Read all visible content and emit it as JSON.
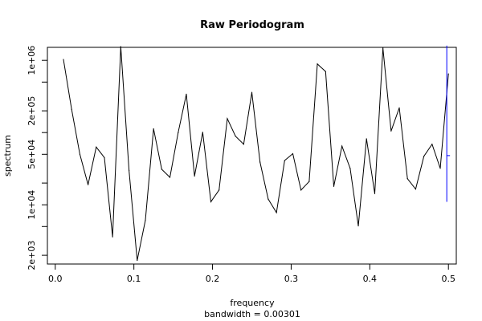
{
  "chart_data": {
    "type": "line",
    "title": "Raw Periodogram",
    "xlabel": "frequency",
    "xsublabel": "bandwidth = 0.00301",
    "ylabel": "spectrum",
    "y_scale": "log",
    "xlim": [
      -0.01,
      0.51
    ],
    "ylim_log10": [
      3.18,
      6.18
    ],
    "x_ticks": [
      {
        "value": 0.0,
        "label": "0.0"
      },
      {
        "value": 0.1,
        "label": "0.1"
      },
      {
        "value": 0.2,
        "label": "0.2"
      },
      {
        "value": 0.3,
        "label": "0.3"
      },
      {
        "value": 0.4,
        "label": "0.4"
      },
      {
        "value": 0.5,
        "label": "0.5"
      }
    ],
    "y_ticks": [
      {
        "value": 2000,
        "label": "2e+03"
      },
      {
        "value": 5000,
        "label": ""
      },
      {
        "value": 10000,
        "label": "1e+04"
      },
      {
        "value": 20000,
        "label": ""
      },
      {
        "value": 50000,
        "label": "5e+04"
      },
      {
        "value": 100000,
        "label": ""
      },
      {
        "value": 200000,
        "label": "2e+05"
      },
      {
        "value": 500000,
        "label": ""
      },
      {
        "value": 1000000,
        "label": "1e+06"
      }
    ],
    "series": [
      {
        "color": "#000000",
        "x": [
          0.0104,
          0.0208,
          0.0313,
          0.0417,
          0.0521,
          0.0625,
          0.0729,
          0.0833,
          0.0938,
          0.1042,
          0.1146,
          0.125,
          0.1354,
          0.1458,
          0.1563,
          0.1667,
          0.1771,
          0.1875,
          0.1979,
          0.2083,
          0.2188,
          0.2292,
          0.2396,
          0.25,
          0.2604,
          0.2708,
          0.2813,
          0.2917,
          0.3021,
          0.3125,
          0.3229,
          0.3333,
          0.3438,
          0.3542,
          0.3646,
          0.375,
          0.3854,
          0.3958,
          0.4063,
          0.4167,
          0.4271,
          0.4375,
          0.4479,
          0.4583,
          0.4688,
          0.4792,
          0.4896,
          0.5
        ],
        "y": [
          1030000,
          210000,
          50000,
          19000,
          63000,
          45000,
          3600,
          1550000,
          30000,
          1700,
          6100,
          113000,
          31000,
          24000,
          100000,
          340000,
          25000,
          101000,
          11000,
          16000,
          156000,
          89000,
          69000,
          360000,
          39000,
          12000,
          7800,
          41000,
          51000,
          16000,
          21000,
          890000,
          700000,
          18000,
          65000,
          32000,
          5100,
          82000,
          14300,
          1480000,
          105000,
          220000,
          23000,
          16500,
          47000,
          69000,
          32000,
          650000
        ]
      }
    ],
    "ci_bar": {
      "color": "#0000ff",
      "x": 0.4979,
      "low": 11000,
      "mid": 48000,
      "high": 1600000
    }
  }
}
